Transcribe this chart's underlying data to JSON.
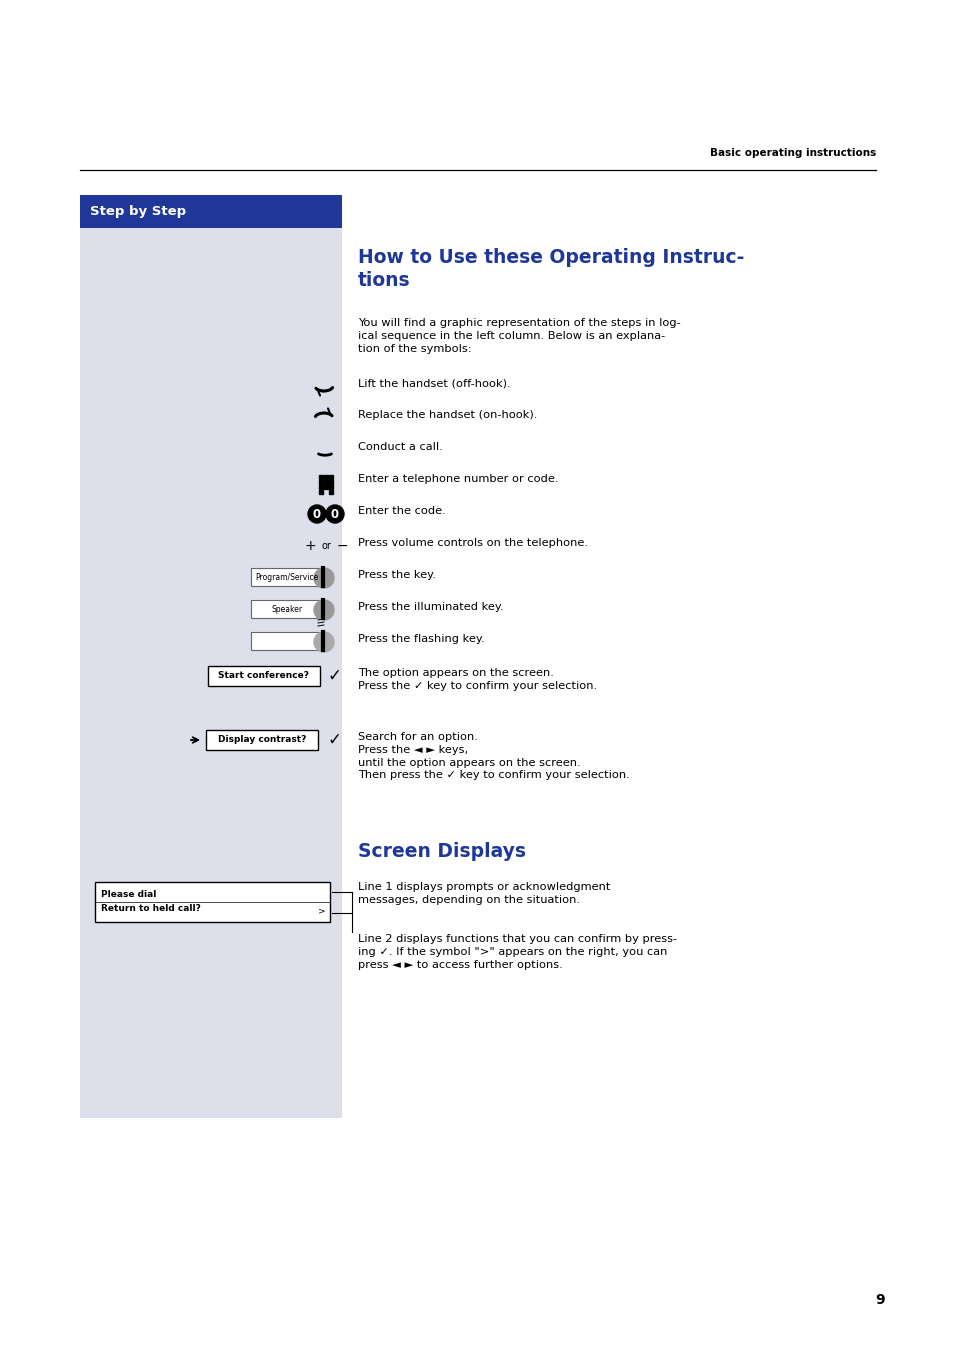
{
  "page_bg": "#ffffff",
  "left_col_bg": "#dde0ea",
  "header_bar_bg": "#1e3799",
  "header_bar_text": "Step by Step",
  "header_bar_text_color": "#ffffff",
  "section_title1_color": "#1e3799",
  "section_title2_color": "#1e3799",
  "top_label": "Basic operating instructions",
  "page_number": "9",
  "body_text_color": "#000000",
  "intro_text": "You will find a graphic representation of the steps in log-\nical sequence in the left column. Below is an explana-\ntion of the symbols:",
  "screen_text1": "Line 1 displays prompts or acknowledgment\nmessages, depending on the situation.",
  "screen_text2": "Line 2 displays functions that you can confirm by press-\ning ✓. If the symbol \">\" appears on the right, you can\npress ◄ ► to access further options."
}
